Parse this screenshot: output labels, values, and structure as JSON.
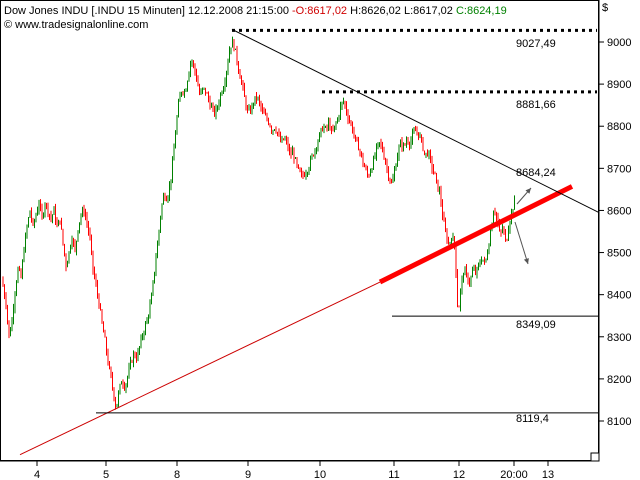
{
  "header": {
    "instrument": "Dow Jones INDU [.INDU  15 Minuten]",
    "datetime": "12.12.2008 21:15:00",
    "open": "-O:8617,02",
    "high": "H:8626,02",
    "low": "L:8617,02",
    "close": "C:8624,19",
    "website": "www.tradesignalonline.com",
    "currency": "$"
  },
  "colors": {
    "up_candle": "#008000",
    "down_candle": "#ff0000",
    "support_line": "#cc0000",
    "thick_trend": "#ff0000",
    "resistance_line": "#000000"
  },
  "chart_data": {
    "type": "candlestick",
    "x_ticks": [
      "4",
      "5",
      "8",
      "9",
      "10",
      "11",
      "12",
      "20:00",
      "13"
    ],
    "y_ticks": [
      8100,
      8200,
      8300,
      8400,
      8500,
      8600,
      8700,
      8800,
      8900,
      9000
    ],
    "ylim": [
      8020,
      9080
    ],
    "grid": false,
    "level_labels": [
      "9027,49",
      "8881,66",
      "8684,24",
      "8349,09",
      "8119,4"
    ],
    "annotations": {
      "resistance_9027": 9027.49,
      "resistance_8881": 8881.66,
      "target_8684": 8684.24,
      "support_8349": 8349.09,
      "support_8119": 8119.4
    },
    "price_path": [
      [
        0,
        8470
      ],
      [
        3,
        8420
      ],
      [
        6,
        8380
      ],
      [
        9,
        8300
      ],
      [
        12,
        8340
      ],
      [
        15,
        8410
      ],
      [
        18,
        8460
      ],
      [
        21,
        8440
      ],
      [
        24,
        8510
      ],
      [
        27,
        8560
      ],
      [
        30,
        8600
      ],
      [
        33,
        8560
      ],
      [
        36,
        8590
      ],
      [
        39,
        8620
      ],
      [
        42,
        8580
      ],
      [
        45,
        8620
      ],
      [
        48,
        8600
      ],
      [
        51,
        8580
      ],
      [
        54,
        8600
      ],
      [
        57,
        8560
      ],
      [
        60,
        8580
      ],
      [
        63,
        8520
      ],
      [
        66,
        8470
      ],
      [
        69,
        8500
      ],
      [
        72,
        8540
      ],
      [
        75,
        8500
      ],
      [
        78,
        8560
      ],
      [
        81,
        8590
      ],
      [
        84,
        8600
      ],
      [
        87,
        8570
      ],
      [
        90,
        8530
      ],
      [
        93,
        8460
      ],
      [
        96,
        8420
      ],
      [
        99,
        8380
      ],
      [
        102,
        8330
      ],
      [
        105,
        8290
      ],
      [
        108,
        8240
      ],
      [
        111,
        8200
      ],
      [
        114,
        8160
      ],
      [
        116,
        8130
      ],
      [
        119,
        8170
      ],
      [
        122,
        8200
      ],
      [
        125,
        8180
      ],
      [
        128,
        8210
      ],
      [
        131,
        8240
      ],
      [
        134,
        8260
      ],
      [
        137,
        8250
      ],
      [
        140,
        8280
      ],
      [
        143,
        8310
      ],
      [
        146,
        8330
      ],
      [
        149,
        8360
      ],
      [
        152,
        8400
      ],
      [
        155,
        8470
      ],
      [
        158,
        8530
      ],
      [
        161,
        8600
      ],
      [
        164,
        8640
      ],
      [
        167,
        8630
      ],
      [
        170,
        8660
      ],
      [
        173,
        8720
      ],
      [
        176,
        8800
      ],
      [
        179,
        8860
      ],
      [
        182,
        8890
      ],
      [
        185,
        8880
      ],
      [
        188,
        8920
      ],
      [
        191,
        8960
      ],
      [
        194,
        8940
      ],
      [
        197,
        8910
      ],
      [
        200,
        8870
      ],
      [
        203,
        8890
      ],
      [
        206,
        8880
      ],
      [
        209,
        8860
      ],
      [
        212,
        8840
      ],
      [
        215,
        8830
      ],
      [
        218,
        8850
      ],
      [
        221,
        8880
      ],
      [
        224,
        8900
      ],
      [
        227,
        8940
      ],
      [
        230,
        8990
      ],
      [
        233,
        9000
      ],
      [
        236,
        8970
      ],
      [
        239,
        8930
      ],
      [
        242,
        8900
      ],
      [
        245,
        8860
      ],
      [
        248,
        8830
      ],
      [
        251,
        8840
      ],
      [
        254,
        8860
      ],
      [
        257,
        8870
      ],
      [
        260,
        8850
      ],
      [
        263,
        8830
      ],
      [
        266,
        8820
      ],
      [
        269,
        8810
      ],
      [
        272,
        8790
      ],
      [
        275,
        8800
      ],
      [
        278,
        8780
      ],
      [
        281,
        8760
      ],
      [
        284,
        8770
      ],
      [
        287,
        8760
      ],
      [
        290,
        8730
      ],
      [
        293,
        8740
      ],
      [
        296,
        8710
      ],
      [
        299,
        8690
      ],
      [
        302,
        8680
      ],
      [
        305,
        8690
      ],
      [
        308,
        8700
      ],
      [
        311,
        8720
      ],
      [
        314,
        8740
      ],
      [
        317,
        8760
      ],
      [
        320,
        8780
      ],
      [
        323,
        8800
      ],
      [
        326,
        8790
      ],
      [
        329,
        8810
      ],
      [
        332,
        8780
      ],
      [
        335,
        8800
      ],
      [
        338,
        8820
      ],
      [
        341,
        8850
      ],
      [
        344,
        8860
      ],
      [
        347,
        8830
      ],
      [
        350,
        8810
      ],
      [
        353,
        8790
      ],
      [
        356,
        8760
      ],
      [
        359,
        8750
      ],
      [
        362,
        8720
      ],
      [
        365,
        8700
      ],
      [
        368,
        8680
      ],
      [
        371,
        8700
      ],
      [
        374,
        8720
      ],
      [
        377,
        8750
      ],
      [
        380,
        8760
      ],
      [
        383,
        8740
      ],
      [
        386,
        8710
      ],
      [
        389,
        8680
      ],
      [
        392,
        8660
      ],
      [
        395,
        8700
      ],
      [
        398,
        8740
      ],
      [
        401,
        8760
      ],
      [
        404,
        8750
      ],
      [
        407,
        8770
      ],
      [
        410,
        8760
      ],
      [
        413,
        8780
      ],
      [
        416,
        8790
      ],
      [
        419,
        8780
      ],
      [
        422,
        8760
      ],
      [
        425,
        8730
      ],
      [
        428,
        8740
      ],
      [
        431,
        8710
      ],
      [
        434,
        8690
      ],
      [
        437,
        8660
      ],
      [
        440,
        8640
      ],
      [
        443,
        8580
      ],
      [
        446,
        8540
      ],
      [
        449,
        8520
      ],
      [
        452,
        8540
      ],
      [
        455,
        8510
      ],
      [
        458,
        8350
      ],
      [
        461,
        8420
      ],
      [
        464,
        8460
      ],
      [
        467,
        8440
      ],
      [
        470,
        8430
      ],
      [
        473,
        8460
      ],
      [
        476,
        8450
      ],
      [
        479,
        8470
      ],
      [
        482,
        8490
      ],
      [
        485,
        8470
      ],
      [
        488,
        8510
      ],
      [
        491,
        8560
      ],
      [
        494,
        8610
      ],
      [
        497,
        8580
      ],
      [
        500,
        8540
      ],
      [
        503,
        8560
      ],
      [
        506,
        8520
      ],
      [
        509,
        8570
      ],
      [
        512,
        8600
      ],
      [
        515,
        8624
      ]
    ]
  }
}
